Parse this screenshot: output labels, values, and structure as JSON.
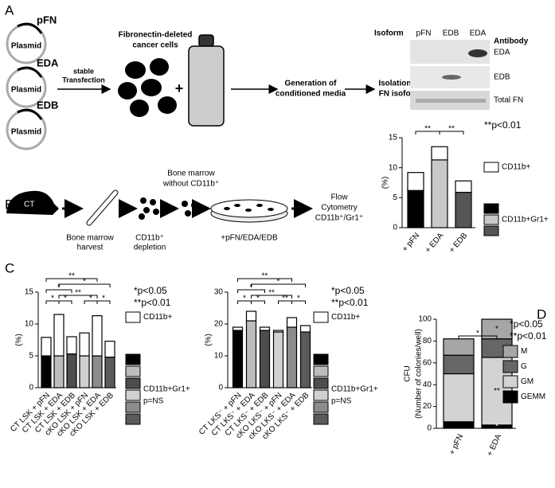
{
  "panel_labels": [
    "A",
    "B",
    "C",
    "D"
  ],
  "panel_a": {
    "plasmid_label": "Plasmid",
    "plasmids": [
      "pFN",
      "EDA",
      "EDB"
    ],
    "transfection": [
      "stable",
      "Transfection"
    ],
    "cells": [
      "Fibronectin-deleted",
      "cancer cells"
    ],
    "plus": "+",
    "media": [
      "Generation of",
      "conditioned media"
    ],
    "isolation": [
      "Isolation of",
      "FN isoform"
    ],
    "blot": {
      "isoform_header": "Isoform",
      "isoforms": [
        "pFN",
        "EDB",
        "EDA"
      ],
      "antibody_header": "Antibody",
      "antibodies": [
        "EDA",
        "EDB",
        "Total FN"
      ]
    }
  },
  "panel_b": {
    "mouse": "CT",
    "harvest": [
      "Bone marrow",
      "harvest"
    ],
    "depletion": [
      "CD11b⁺",
      "depletion"
    ],
    "without": [
      "Bone marrow",
      "without CD11b⁺"
    ],
    "treatment": "+pFN/EDA/EDB",
    "flow": [
      "Flow",
      "Cytometry",
      "CD11b⁺/Gr1⁺"
    ]
  },
  "chart_data": [
    {
      "type": "bar",
      "stacked": true,
      "ylabel": "(%)",
      "categories": [
        "+ pFN",
        "+ EDA",
        "+ EDB"
      ],
      "series": [
        {
          "name": "CD11b+Gr1+",
          "colors": [
            "#000000",
            "#c8c8c8",
            "#555555"
          ],
          "values": [
            6.2,
            11.3,
            5.9
          ]
        },
        {
          "name": "CD11b+",
          "color": "#ffffff",
          "values": [
            3.0,
            2.2,
            1.9
          ]
        }
      ],
      "ylim": [
        0,
        15
      ],
      "yticks": [
        0,
        5,
        10,
        15
      ],
      "annotations": [
        "**p<0.01"
      ],
      "significance": [
        "**",
        "**"
      ]
    },
    {
      "type": "bar",
      "stacked": true,
      "ylabel": "(%)",
      "categories": [
        "CT LSK + pFN",
        "CT LSK + EDA",
        "CT LSK + EDB",
        "cKO LSK + pFN",
        "cKO LSK + EDA",
        "cKO LSK + EDB"
      ],
      "series": [
        {
          "name": "CD11b+Gr1+",
          "colors": [
            "#000000",
            "#bdbdbd",
            "#4d4d4d",
            "#d0d0d0",
            "#8c8c8c",
            "#5a5a5a"
          ],
          "values": [
            5.0,
            5.0,
            5.3,
            5.0,
            5.0,
            4.8
          ]
        },
        {
          "name": "CD11b+",
          "color": "#ffffff",
          "values": [
            2.9,
            6.5,
            2.7,
            3.6,
            6.3,
            2.5
          ]
        }
      ],
      "ylim": [
        0,
        15
      ],
      "yticks": [
        0,
        5,
        10,
        15
      ],
      "legend_note": "p=NS",
      "annotations": [
        "*p<0.05",
        "**p<0.01"
      ],
      "significance": [
        "**",
        "*",
        "*",
        "**",
        "*",
        "*",
        "*",
        "*"
      ]
    },
    {
      "type": "bar",
      "stacked": true,
      "ylabel": "(%)",
      "categories": [
        "CT LKS⁻ + pFN",
        "CT LKS⁻ + EDA",
        "CT LKS⁻ + EDB",
        "cKO LKS⁻ + pFN",
        "cKO LKS⁻ + EDA",
        "cKO LKS⁻ + EDB"
      ],
      "series": [
        {
          "name": "CD11b+Gr1+",
          "colors": [
            "#000000",
            "#bdbdbd",
            "#4d4d4d",
            "#d0d0d0",
            "#8c8c8c",
            "#5a5a5a"
          ],
          "values": [
            18,
            21,
            18,
            17.5,
            19,
            17.5
          ]
        },
        {
          "name": "CD11b+",
          "color": "#ffffff",
          "values": [
            1,
            3,
            1,
            0.5,
            3,
            2
          ]
        }
      ],
      "ylim": [
        0,
        30
      ],
      "yticks": [
        0,
        10,
        20,
        30
      ],
      "legend_note": "p=NS",
      "annotations": [
        "*p<0.05",
        "**p<0.01"
      ],
      "significance": [
        "**",
        "*",
        "*",
        "**",
        "*",
        "*",
        "**",
        "*"
      ]
    },
    {
      "type": "bar",
      "stacked": true,
      "ylabel": "CFU",
      "ylabel_sub": "(Number of colonies/well)",
      "categories": [
        "+ pFN",
        "+ EDA"
      ],
      "series": [
        {
          "name": "GEMM",
          "color": "#000000",
          "values": [
            6,
            3
          ]
        },
        {
          "name": "GM",
          "color": "#d3d3d3",
          "values": [
            44,
            62
          ]
        },
        {
          "name": "G",
          "color": "#666666",
          "values": [
            17,
            17
          ]
        },
        {
          "name": "M",
          "color": "#a6a6a6",
          "values": [
            15,
            18
          ]
        }
      ],
      "ylim": [
        0,
        100
      ],
      "yticks": [
        0,
        20,
        40,
        60,
        80,
        100
      ],
      "annotations": [
        "*p<0.05",
        "**p<0.01"
      ],
      "significance": [
        "*"
      ],
      "bar_marks": [
        "*",
        "**",
        "*"
      ]
    }
  ]
}
